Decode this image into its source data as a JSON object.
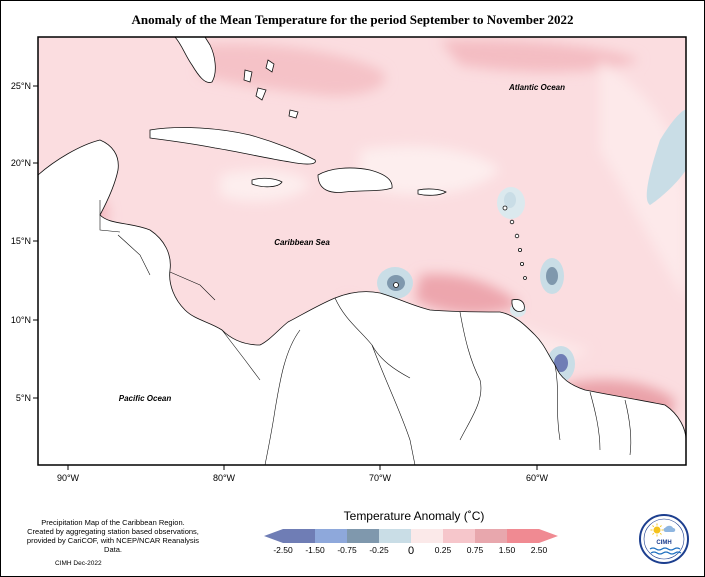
{
  "title": "Anomaly of the Mean Temperature for the period September to November 2022",
  "labels": {
    "atlantic": "Atlantic Ocean",
    "caribbean": "Caribbean Sea",
    "pacific": "Pacific Ocean"
  },
  "axes": {
    "lat_ticks": [
      "25°N",
      "20°N",
      "15°N",
      "10°N",
      "5°N"
    ],
    "lon_ticks": [
      "90°W",
      "80°W",
      "70°W",
      "60°W"
    ]
  },
  "credit_lines": [
    "Precipitation Map of the Caribbean Region.",
    "Created by aggregating station based observations,",
    "provided by CariCOF, with NCEP/NCAR Reanalysis Data."
  ],
  "cimh_date": "CIMH Dec-2022",
  "legend": {
    "title": "Temperature Anomaly (˚C)",
    "tick_labels": [
      "-2.50",
      "-1.50",
      "-0.75",
      "-0.25",
      "0",
      "0.25",
      "0.75",
      "1.50",
      "2.50"
    ],
    "colors": [
      "#6f7db5",
      "#8ea8db",
      "#7f98ad",
      "#c9dde6",
      "#fbe9e9",
      "#f6c6cb",
      "#e8a7ad",
      "#f08a92"
    ]
  },
  "logo": {
    "text": "CIMH"
  }
}
